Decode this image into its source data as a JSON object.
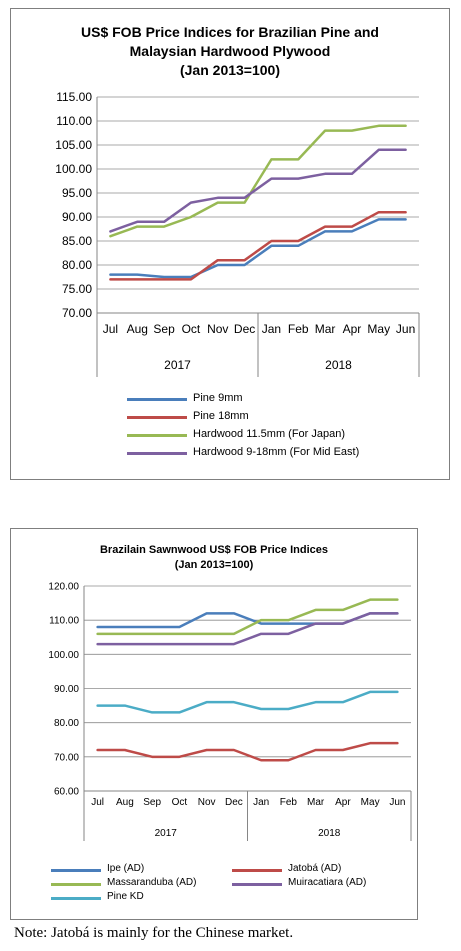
{
  "chart_data": [
    {
      "type": "line",
      "title": "US$ FOB Price Indices for Brazilian Pine and Malaysian Hardwood Plywood",
      "title_lines": [
        "US$ FOB Price Indices for Brazilian Pine and",
        "Malaysian Hardwood Plywood"
      ],
      "subtitle": "(Jan 2013=100)",
      "categories": [
        "Jul",
        "Aug",
        "Sep",
        "Oct",
        "Nov",
        "Dec",
        "Jan",
        "Feb",
        "Mar",
        "Apr",
        "May",
        "Jun"
      ],
      "groups": [
        {
          "label": "2017",
          "span": 6
        },
        {
          "label": "2018",
          "span": 6
        }
      ],
      "ylim": [
        70,
        115
      ],
      "yticks": [
        "70.00",
        "75.00",
        "80.00",
        "85.00",
        "90.00",
        "95.00",
        "100.00",
        "105.00",
        "110.00",
        "115.00"
      ],
      "grid": true,
      "legend_position": "bottom",
      "series": [
        {
          "name": "Pine 9mm",
          "color": "#4a7ebb",
          "values": [
            78,
            78,
            77.5,
            77.5,
            80,
            80,
            84,
            84,
            87,
            87,
            89.5,
            89.5
          ]
        },
        {
          "name": "Pine 18mm",
          "color": "#be4b48",
          "values": [
            77,
            77,
            77,
            77,
            81,
            81,
            85,
            85,
            88,
            88,
            91,
            91
          ]
        },
        {
          "name": "Hardwood 11.5mm (For Japan)",
          "color": "#98b954",
          "values": [
            86,
            88,
            88,
            90,
            93,
            93,
            102,
            102,
            108,
            108,
            109,
            109
          ]
        },
        {
          "name": "Hardwood 9-18mm (For Mid East)",
          "color": "#7d60a0",
          "values": [
            87,
            89,
            89,
            93,
            94,
            94,
            98,
            98,
            99,
            99,
            104,
            104
          ]
        }
      ]
    },
    {
      "type": "line",
      "title": "Brazilain Sawnwood US$ FOB Price Indices",
      "subtitle": "(Jan 2013=100)",
      "categories": [
        "Jul",
        "Aug",
        "Sep",
        "Oct",
        "Nov",
        "Dec",
        "Jan",
        "Feb",
        "Mar",
        "Apr",
        "May",
        "Jun"
      ],
      "groups": [
        {
          "label": "2017",
          "span": 6
        },
        {
          "label": "2018",
          "span": 6
        }
      ],
      "ylim": [
        60,
        120
      ],
      "yticks": [
        "60.00",
        "70.00",
        "80.00",
        "90.00",
        "100.00",
        "110.00",
        "120.00"
      ],
      "grid": true,
      "legend_position": "bottom",
      "series": [
        {
          "name": "Ipe (AD)",
          "color": "#4a7ebb",
          "values": [
            108,
            108,
            108,
            108,
            112,
            112,
            109,
            109,
            109,
            109,
            112,
            112
          ]
        },
        {
          "name": "Jatobá (AD)",
          "color": "#be4b48",
          "values": [
            72,
            72,
            70,
            70,
            72,
            72,
            69,
            69,
            72,
            72,
            74,
            74
          ]
        },
        {
          "name": "Massaranduba (AD)",
          "color": "#98b954",
          "values": [
            106,
            106,
            106,
            106,
            106,
            106,
            110,
            110,
            113,
            113,
            116,
            116
          ]
        },
        {
          "name": "Muiracatiara (AD)",
          "color": "#7d60a0",
          "values": [
            103,
            103,
            103,
            103,
            103,
            103,
            106,
            106,
            109,
            109,
            112,
            112
          ]
        },
        {
          "name": "Pine KD",
          "color": "#4bacc6",
          "values": [
            85,
            85,
            83,
            83,
            86,
            86,
            84,
            84,
            86,
            86,
            89,
            89
          ]
        }
      ]
    }
  ],
  "note": "Note: Jatobá is mainly for the Chinese market."
}
